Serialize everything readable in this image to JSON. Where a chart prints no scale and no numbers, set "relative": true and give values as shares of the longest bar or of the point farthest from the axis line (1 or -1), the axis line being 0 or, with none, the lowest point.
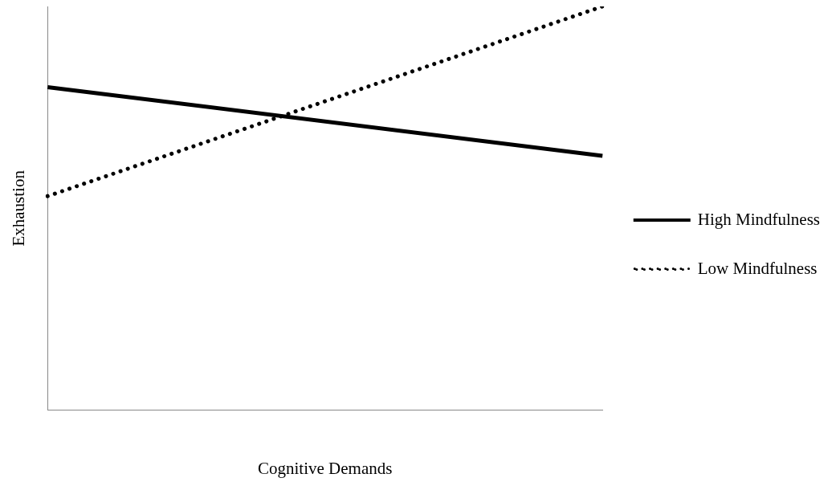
{
  "chart_data": {
    "type": "line",
    "xlabel": "Cognitive Demands",
    "ylabel": "Exhaustion",
    "categories": [
      null,
      null
    ],
    "relative": true,
    "legend": "right",
    "grid": false,
    "marker": "none",
    "series": [
      {
        "name": "High Mindfulness",
        "color": "#000000",
        "line_style": "solid",
        "values": [
          0.8,
          0.63
        ]
      },
      {
        "name": "Low Mindfulness",
        "color": "#000000",
        "line_style": "dotted",
        "values": [
          0.53,
          1
        ]
      }
    ]
  }
}
